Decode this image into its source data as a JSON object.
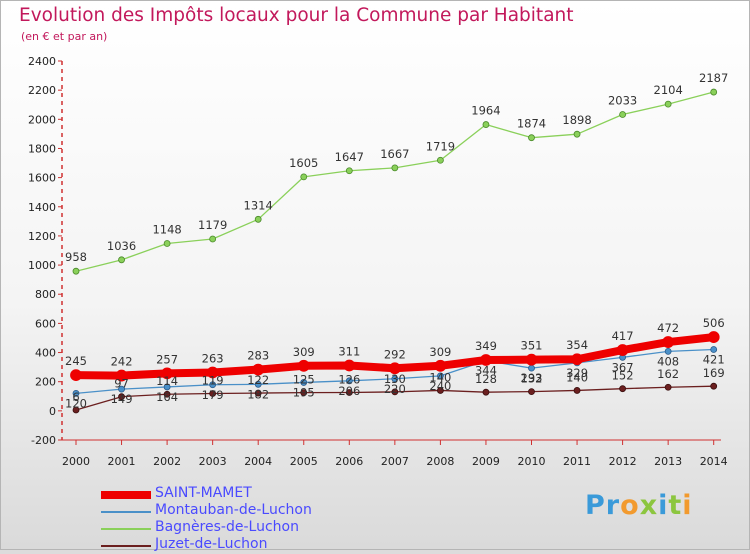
{
  "title": "Evolution des Impôts locaux pour la Commune par Habitant",
  "subtitle": "(en € et par an)",
  "logo": {
    "text": "Proxiti",
    "letters": [
      {
        "ch": "P",
        "color": "#3a9ad9"
      },
      {
        "ch": "r",
        "color": "#3a9ad9"
      },
      {
        "ch": "o",
        "color": "#f29a2e"
      },
      {
        "ch": "x",
        "color": "#8cc63f"
      },
      {
        "ch": "i",
        "color": "#3a9ad9"
      },
      {
        "ch": "t",
        "color": "#8cc63f"
      },
      {
        "ch": "i",
        "color": "#f29a2e"
      }
    ]
  },
  "chart_data": {
    "type": "line",
    "title": "Evolution des Impôts locaux pour la Commune par Habitant",
    "subtitle": "(en € et par an)",
    "x": [
      "2000",
      "2001",
      "2002",
      "2003",
      "2004",
      "2005",
      "2006",
      "2007",
      "2008",
      "2009",
      "2010",
      "2011",
      "2012",
      "2013",
      "2014"
    ],
    "ylim": [
      -200,
      2400
    ],
    "yticks": [
      "-200",
      "0",
      "200",
      "400",
      "600",
      "800",
      "1000",
      "1200",
      "1400",
      "1600",
      "1800",
      "2000",
      "2200",
      "2400"
    ],
    "grid": false,
    "legend_position": "bottom-left",
    "series": [
      {
        "name": "SAINT-MAMET",
        "color": "#ee0000",
        "values": [
          245,
          242,
          257,
          263,
          283,
          309,
          311,
          292,
          309,
          349,
          351,
          354,
          417,
          472,
          506
        ],
        "labels": [
          "245",
          "242",
          "257",
          "263",
          "283",
          "309",
          "311",
          "292",
          "309",
          "349",
          "351",
          "354",
          "417",
          "472",
          "506"
        ]
      },
      {
        "name": "Montauban-de-Luchon",
        "color": "#4a90c8",
        "values": [
          120,
          149,
          164,
          179,
          182,
          195,
          206,
          220,
          240,
          344,
          293,
          329,
          367,
          408,
          421
        ],
        "labels": [
          "120",
          "149",
          "164",
          "179",
          "182",
          "195",
          "206",
          "220",
          "240",
          "344",
          "293",
          "329",
          "367",
          "408",
          "421"
        ]
      },
      {
        "name": "Bagnères-de-Luchon",
        "color": "#8ad05a",
        "values": [
          958,
          1036,
          1148,
          1179,
          1314,
          1605,
          1647,
          1667,
          1719,
          1964,
          1874,
          1898,
          2033,
          2104,
          2187
        ],
        "labels": [
          "958",
          "1036",
          "1148",
          "1179",
          "1314",
          "1605",
          "1647",
          "1667",
          "1719",
          "1964",
          "1874",
          "1898",
          "2033",
          "2104",
          "2187"
        ]
      },
      {
        "name": "Juzet-de-Luchon",
        "color": "#6b1f1f",
        "values": [
          6,
          97,
          114,
          119,
          122,
          125,
          126,
          130,
          140,
          128,
          132,
          140,
          152,
          162,
          169
        ],
        "labels": [
          "6",
          "97",
          "114",
          "119",
          "122",
          "125",
          "126",
          "130",
          "140",
          "128",
          "132",
          "140",
          "152",
          "162",
          "169"
        ]
      }
    ]
  }
}
